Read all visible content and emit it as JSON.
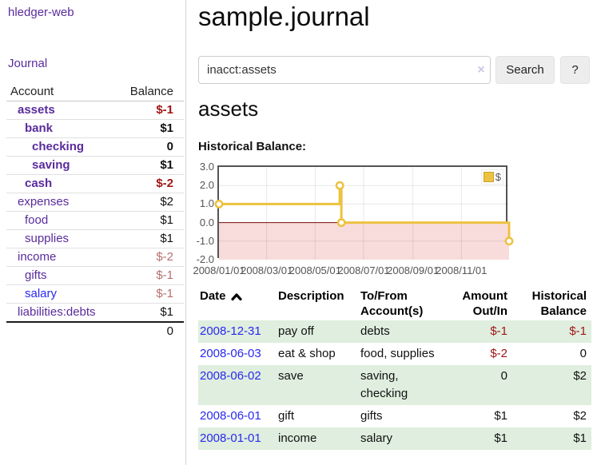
{
  "app": {
    "title": "hledger-web"
  },
  "colors": {
    "link_purple": "#5a2b9c",
    "link_blue": "#2929ee",
    "negative_strong": "#a01515",
    "negative_muted": "#b56f6f",
    "row_stripe_green": "#dfeede",
    "series_gold": "#edc240",
    "negative_region_pink": "#f8dcdc",
    "zero_line_red": "#7a0a0a"
  },
  "sidebar": {
    "app_link": "hledger-web",
    "journal_link": "Journal",
    "headers": {
      "account": "Account",
      "balance": "Balance"
    },
    "accounts": [
      {
        "name": "assets",
        "balance": "$-1"
      },
      {
        "name": "bank",
        "balance": "$1"
      },
      {
        "name": "checking",
        "balance": "0"
      },
      {
        "name": "saving",
        "balance": "$1"
      },
      {
        "name": "cash",
        "balance": "$-2"
      },
      {
        "name": "expenses",
        "balance": "$2"
      },
      {
        "name": "food",
        "balance": "$1"
      },
      {
        "name": "supplies",
        "balance": "$1"
      },
      {
        "name": "income",
        "balance": "$-2"
      },
      {
        "name": "gifts",
        "balance": "$-1"
      },
      {
        "name": "salary",
        "balance": "$-1"
      },
      {
        "name": "liabilities:debts",
        "balance": "$1"
      }
    ],
    "total": "0"
  },
  "main": {
    "title": "sample.journal",
    "search": {
      "value": "inacct:assets",
      "clear_icon": "×",
      "search_button": "Search",
      "help_button": "?"
    },
    "account_heading": "assets",
    "chart_title": "Historical Balance:",
    "register": {
      "headers": {
        "date": "Date",
        "description": "Description",
        "tofrom": "To/From Account(s)",
        "amount": "Amount Out/In",
        "balance": "Historical Balance"
      },
      "sort_icon": "caret-up",
      "rows": [
        {
          "date": "2008-12-31",
          "description": "pay off",
          "accounts": "debts",
          "amount": "$-1",
          "balance": "$-1"
        },
        {
          "date": "2008-06-03",
          "description": "eat & shop",
          "accounts": "food, supplies",
          "amount": "$-2",
          "balance": "0"
        },
        {
          "date": "2008-06-02",
          "description": "save",
          "accounts": "saving, checking",
          "amount": "0",
          "balance": "$2"
        },
        {
          "date": "2008-06-01",
          "description": "gift",
          "accounts": "gifts",
          "amount": "$1",
          "balance": "$2"
        },
        {
          "date": "2008-01-01",
          "description": "income",
          "accounts": "salary",
          "amount": "$1",
          "balance": "$1"
        }
      ]
    }
  },
  "chart_data": {
    "type": "line",
    "title": "Historical Balance:",
    "style": "steps",
    "series": [
      {
        "name": "$",
        "color": "#edc240",
        "points": [
          {
            "date": "2008-01-01",
            "day": 0,
            "value": 1
          },
          {
            "date": "2008-06-01",
            "day": 152,
            "value": 2
          },
          {
            "date": "2008-06-03",
            "day": 154,
            "value": 0
          },
          {
            "date": "2008-12-31",
            "day": 365,
            "value": -1
          }
        ]
      }
    ],
    "x_ticks": [
      {
        "label": "2008/01/01",
        "day": 0
      },
      {
        "label": "2008/03/01",
        "day": 60
      },
      {
        "label": "2008/05/01",
        "day": 121
      },
      {
        "label": "2008/07/01",
        "day": 182
      },
      {
        "label": "2008/09/01",
        "day": 244
      },
      {
        "label": "2008/11/01",
        "day": 305
      }
    ],
    "y_ticks": [
      "3.0",
      "2.0",
      "1.0",
      "0.0",
      "-1.0",
      "-2.0"
    ],
    "xlim_days": [
      0,
      365
    ],
    "ylim": [
      -2.0,
      3.0
    ],
    "grid": true,
    "negative_region_color": "#f8dcdc",
    "zero_line_color": "#7a0a0a",
    "legend": {
      "label": "$",
      "position": "top-right"
    }
  }
}
